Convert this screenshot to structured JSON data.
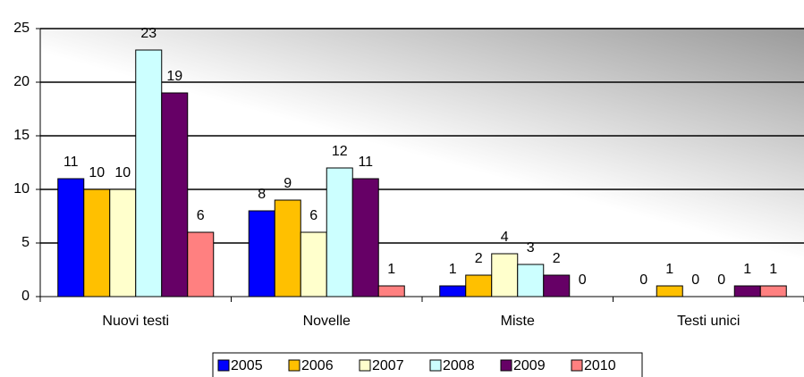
{
  "chart_data": {
    "type": "bar",
    "categories": [
      "Nuovi testi",
      "Novelle",
      "Miste",
      "Testi unici"
    ],
    "series": [
      {
        "name": "2005",
        "color": "#0000ff",
        "values": [
          11,
          8,
          1,
          0
        ]
      },
      {
        "name": "2006",
        "color": "#ffc000",
        "values": [
          10,
          9,
          2,
          1
        ]
      },
      {
        "name": "2007",
        "color": "#ffffcc",
        "values": [
          10,
          6,
          4,
          0
        ]
      },
      {
        "name": "2008",
        "color": "#ccffff",
        "values": [
          23,
          12,
          3,
          0
        ]
      },
      {
        "name": "2009",
        "color": "#660066",
        "values": [
          19,
          11,
          2,
          1
        ]
      },
      {
        "name": "2010",
        "color": "#ff8080",
        "values": [
          6,
          1,
          0,
          1
        ]
      }
    ],
    "ylim": [
      0,
      25
    ],
    "yticks": [
      0,
      5,
      10,
      15,
      20,
      25
    ],
    "grid": true,
    "legend": "bottom"
  }
}
